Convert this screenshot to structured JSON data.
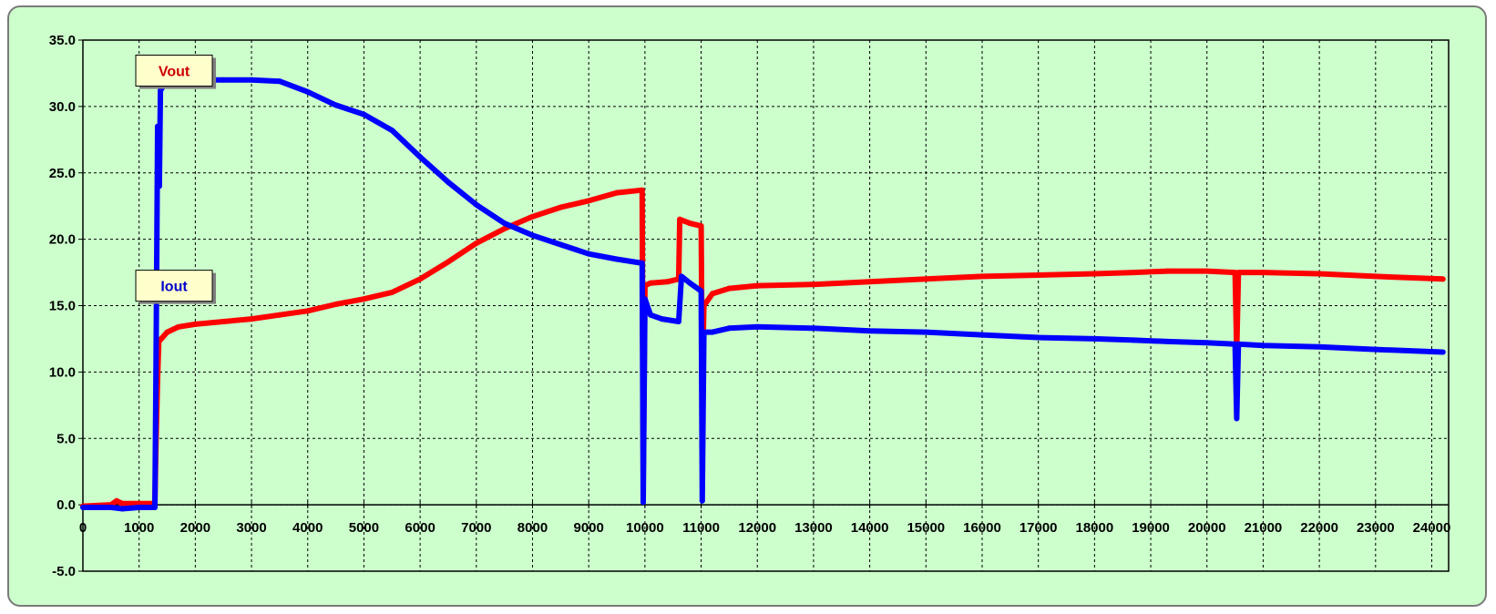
{
  "chart_data": {
    "type": "scatter",
    "xlim": [
      0,
      24300
    ],
    "ylim": [
      -5,
      35
    ],
    "x_ticks": [
      "0",
      "1000",
      "2000",
      "3000",
      "4000",
      "5000",
      "6000",
      "7000",
      "8000",
      "9000",
      "10000",
      "11000",
      "12000",
      "13000",
      "14000",
      "15000",
      "16000",
      "17000",
      "18000",
      "19000",
      "20000",
      "21000",
      "22000",
      "23000",
      "24000"
    ],
    "y_ticks": [
      "35.0",
      "30.0",
      "25.0",
      "20.0",
      "15.0",
      "10.0",
      "5.0",
      "0.0",
      "-5.0"
    ],
    "grid": true,
    "series": [
      {
        "name": "Vout",
        "color": "#ff0000",
        "points": [
          [
            0,
            -0.1
          ],
          [
            500,
            0.0
          ],
          [
            600,
            0.3
          ],
          [
            700,
            0.1
          ],
          [
            1000,
            0.1
          ],
          [
            1280,
            0.1
          ],
          [
            1300,
            4.5
          ],
          [
            1330,
            9.5
          ],
          [
            1350,
            12.3
          ],
          [
            1500,
            13.0
          ],
          [
            1700,
            13.4
          ],
          [
            2000,
            13.6
          ],
          [
            2500,
            13.8
          ],
          [
            3000,
            14.0
          ],
          [
            3500,
            14.3
          ],
          [
            4000,
            14.6
          ],
          [
            4500,
            15.1
          ],
          [
            5000,
            15.5
          ],
          [
            5500,
            16.0
          ],
          [
            6000,
            17.0
          ],
          [
            6500,
            18.3
          ],
          [
            7000,
            19.7
          ],
          [
            7500,
            20.8
          ],
          [
            8000,
            21.7
          ],
          [
            8500,
            22.4
          ],
          [
            9000,
            22.9
          ],
          [
            9500,
            23.5
          ],
          [
            9950,
            23.7
          ],
          [
            9970,
            2.0
          ],
          [
            10000,
            16.5
          ],
          [
            10100,
            16.7
          ],
          [
            10400,
            16.8
          ],
          [
            10600,
            17.0
          ],
          [
            10620,
            21.5
          ],
          [
            10800,
            21.2
          ],
          [
            11000,
            21.0
          ],
          [
            11020,
            9.0
          ],
          [
            11050,
            15.0
          ],
          [
            11200,
            15.9
          ],
          [
            11500,
            16.3
          ],
          [
            12000,
            16.5
          ],
          [
            13000,
            16.6
          ],
          [
            14000,
            16.8
          ],
          [
            15000,
            17.0
          ],
          [
            16000,
            17.2
          ],
          [
            17000,
            17.3
          ],
          [
            18000,
            17.4
          ],
          [
            18700,
            17.5
          ],
          [
            19300,
            17.6
          ],
          [
            20000,
            17.6
          ],
          [
            20500,
            17.5
          ],
          [
            20530,
            11.5
          ],
          [
            20560,
            17.5
          ],
          [
            21000,
            17.5
          ],
          [
            22000,
            17.4
          ],
          [
            23000,
            17.2
          ],
          [
            24200,
            17.0
          ]
        ]
      },
      {
        "name": "Iout",
        "color": "#0000ff",
        "points": [
          [
            0,
            -0.2
          ],
          [
            500,
            -0.2
          ],
          [
            700,
            -0.3
          ],
          [
            1000,
            -0.2
          ],
          [
            1280,
            -0.2
          ],
          [
            1300,
            10.0
          ],
          [
            1330,
            28.5
          ],
          [
            1360,
            24.0
          ],
          [
            1380,
            31.2
          ],
          [
            1500,
            32.0
          ],
          [
            2000,
            32.0
          ],
          [
            2500,
            32.0
          ],
          [
            3000,
            32.0
          ],
          [
            3500,
            31.9
          ],
          [
            4000,
            31.1
          ],
          [
            4500,
            30.1
          ],
          [
            5000,
            29.4
          ],
          [
            5500,
            28.2
          ],
          [
            6000,
            26.2
          ],
          [
            6500,
            24.3
          ],
          [
            7000,
            22.6
          ],
          [
            7500,
            21.2
          ],
          [
            8000,
            20.3
          ],
          [
            8500,
            19.6
          ],
          [
            9000,
            18.9
          ],
          [
            9500,
            18.5
          ],
          [
            9950,
            18.2
          ],
          [
            9970,
            0.2
          ],
          [
            10000,
            15.5
          ],
          [
            10100,
            14.3
          ],
          [
            10300,
            14.0
          ],
          [
            10600,
            13.8
          ],
          [
            10650,
            17.2
          ],
          [
            10800,
            16.7
          ],
          [
            11000,
            16.1
          ],
          [
            11020,
            0.3
          ],
          [
            11050,
            13.0
          ],
          [
            11200,
            13.0
          ],
          [
            11500,
            13.3
          ],
          [
            12000,
            13.4
          ],
          [
            13000,
            13.3
          ],
          [
            14000,
            13.1
          ],
          [
            15000,
            13.0
          ],
          [
            16000,
            12.8
          ],
          [
            17000,
            12.6
          ],
          [
            18000,
            12.5
          ],
          [
            18700,
            12.4
          ],
          [
            19300,
            12.3
          ],
          [
            20000,
            12.2
          ],
          [
            20500,
            12.1
          ],
          [
            20530,
            6.5
          ],
          [
            20560,
            12.1
          ],
          [
            21000,
            12.0
          ],
          [
            22000,
            11.9
          ],
          [
            23000,
            11.7
          ],
          [
            24200,
            11.5
          ]
        ]
      }
    ],
    "annotations": [
      {
        "text": "Vout",
        "color": "#cc0000",
        "x": 1200,
        "y": 32.7
      },
      {
        "text": "Iout",
        "color": "#0000cc",
        "x": 1200,
        "y": 16.5
      }
    ]
  }
}
